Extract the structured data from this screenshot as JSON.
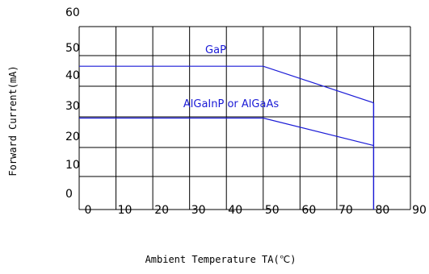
{
  "chart_data": {
    "type": "line",
    "title": "",
    "xlabel": "Ambient Temperature TA(℃)",
    "ylabel": "Forward Current(mA)",
    "xlim": [
      0,
      90
    ],
    "ylim": [
      0,
      60
    ],
    "x_ticks": [
      "0",
      "10",
      "20",
      "30",
      "40",
      "50",
      "60",
      "70",
      "80",
      "90"
    ],
    "y_ticks": [
      "10",
      "20",
      "30",
      "40",
      "50",
      "60"
    ],
    "y_extra_label": "0",
    "grid": true,
    "series": [
      {
        "name": "GaP",
        "color": "#1a1ad6",
        "x": [
          0,
          50,
          80
        ],
        "y": [
          47,
          47,
          35
        ]
      },
      {
        "name": "AlGaInP or AlGaAs",
        "color": "#1a1ad6",
        "x": [
          0,
          50,
          80
        ],
        "y": [
          30,
          30,
          21
        ]
      }
    ],
    "cutoff": {
      "x": 80,
      "color": "#1a1ad6"
    }
  }
}
